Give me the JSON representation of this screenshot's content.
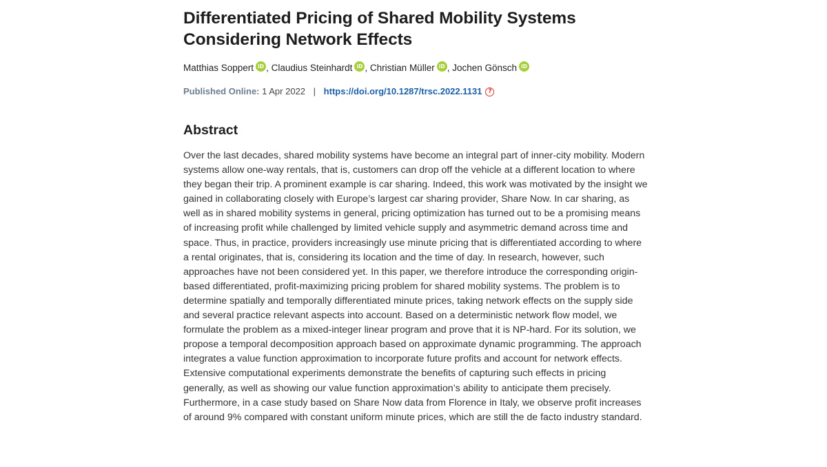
{
  "article": {
    "title": "Differentiated Pricing of Shared Mobility Systems Considering Network Effects",
    "authors": [
      {
        "name": "Matthias Soppert",
        "orcid_icon": "orcid-icon"
      },
      {
        "name": "Claudius Steinhardt",
        "orcid_icon": "orcid-icon"
      },
      {
        "name": "Christian Müller",
        "orcid_icon": "orcid-icon"
      },
      {
        "name": "Jochen Gönsch",
        "orcid_icon": "orcid-icon"
      }
    ],
    "author_separator": ", ",
    "orcid_glyph": "iD",
    "published_label": "Published Online:",
    "published_date": "1 Apr 2022",
    "meta_divider": "|",
    "doi": "https://doi.org/10.1287/trsc.2022.1131",
    "help_glyph": "?",
    "help_icon": "help-circle-icon"
  },
  "abstract": {
    "heading": "Abstract",
    "text": "Over the last decades, shared mobility systems have become an integral part of inner-city mobility. Modern systems allow one-way rentals, that is, customers can drop off the vehicle at a different location to where they began their trip. A prominent example is car sharing. Indeed, this work was motivated by the insight we gained in collaborating closely with Europe’s largest car sharing provider, Share Now. In car sharing, as well as in shared mobility systems in general, pricing optimization has turned out to be a promising means of increasing profit while challenged by limited vehicle supply and asymmetric demand across time and space. Thus, in practice, providers increasingly use minute pricing that is differentiated according to where a rental originates, that is, considering its location and the time of day. In research, however, such approaches have not been considered yet. In this paper, we therefore introduce the corresponding origin-based differentiated, profit-maximizing pricing problem for shared mobility systems. The problem is to determine spatially and temporally differentiated minute prices, taking network effects on the supply side and several practice relevant aspects into account. Based on a deterministic network flow model, we formulate the problem as a mixed-integer linear program and prove that it is NP-hard. For its solution, we propose a temporal decomposition approach based on approximate dynamic programming. The approach integrates a value function approximation to incorporate future profits and account for network effects. Extensive computational experiments demonstrate the benefits of capturing such effects in pricing generally, as well as showing our value function approximation’s ability to anticipate them precisely. Furthermore, in a case study based on Share Now data from Florence in Italy, we observe profit increases of around 9% compared with constant uniform minute prices, which are still the de facto industry standard."
  },
  "colors": {
    "orcid_green": "#a6ce39",
    "doi_blue": "#1a5fa6",
    "label_gray": "#6b7e90",
    "help_red": "#d9332b"
  }
}
